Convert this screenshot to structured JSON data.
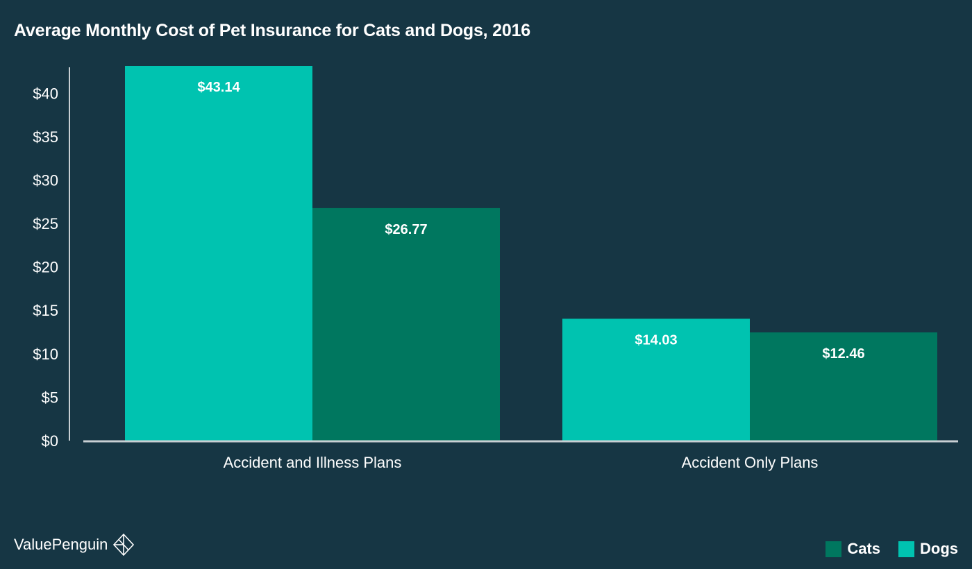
{
  "title": "Average Monthly Cost of Pet Insurance for Cats and Dogs, 2016",
  "brand": {
    "name": "ValuePenguin",
    "icon": "penguin-diamond-logo-icon"
  },
  "legend": [
    {
      "name": "Cats",
      "color": "#00775f"
    },
    {
      "name": "Dogs",
      "color": "#00c3b0"
    }
  ],
  "chart_data": {
    "type": "bar",
    "title": "Average Monthly Cost of Pet Insurance for Cats and Dogs, 2016",
    "categories": [
      "Accident and Illness Plans",
      "Accident Only Plans"
    ],
    "series": [
      {
        "name": "Dogs",
        "color": "#00c3b0",
        "values": [
          43.14,
          14.03
        ],
        "labels": [
          "$43.14",
          "$14.03"
        ]
      },
      {
        "name": "Cats",
        "color": "#00775f",
        "values": [
          26.77,
          12.46
        ],
        "labels": [
          "$26.77",
          "$12.46"
        ]
      }
    ],
    "yticks": [
      0,
      5,
      10,
      15,
      20,
      25,
      30,
      35,
      40
    ],
    "ytick_labels": [
      "$0",
      "$5",
      "$10",
      "$15",
      "$20",
      "$25",
      "$30",
      "$35",
      "$40"
    ],
    "ylim": [
      0,
      43.14
    ],
    "xlabel": "",
    "ylabel": "",
    "grid": false,
    "legend_position": "bottom-right"
  }
}
